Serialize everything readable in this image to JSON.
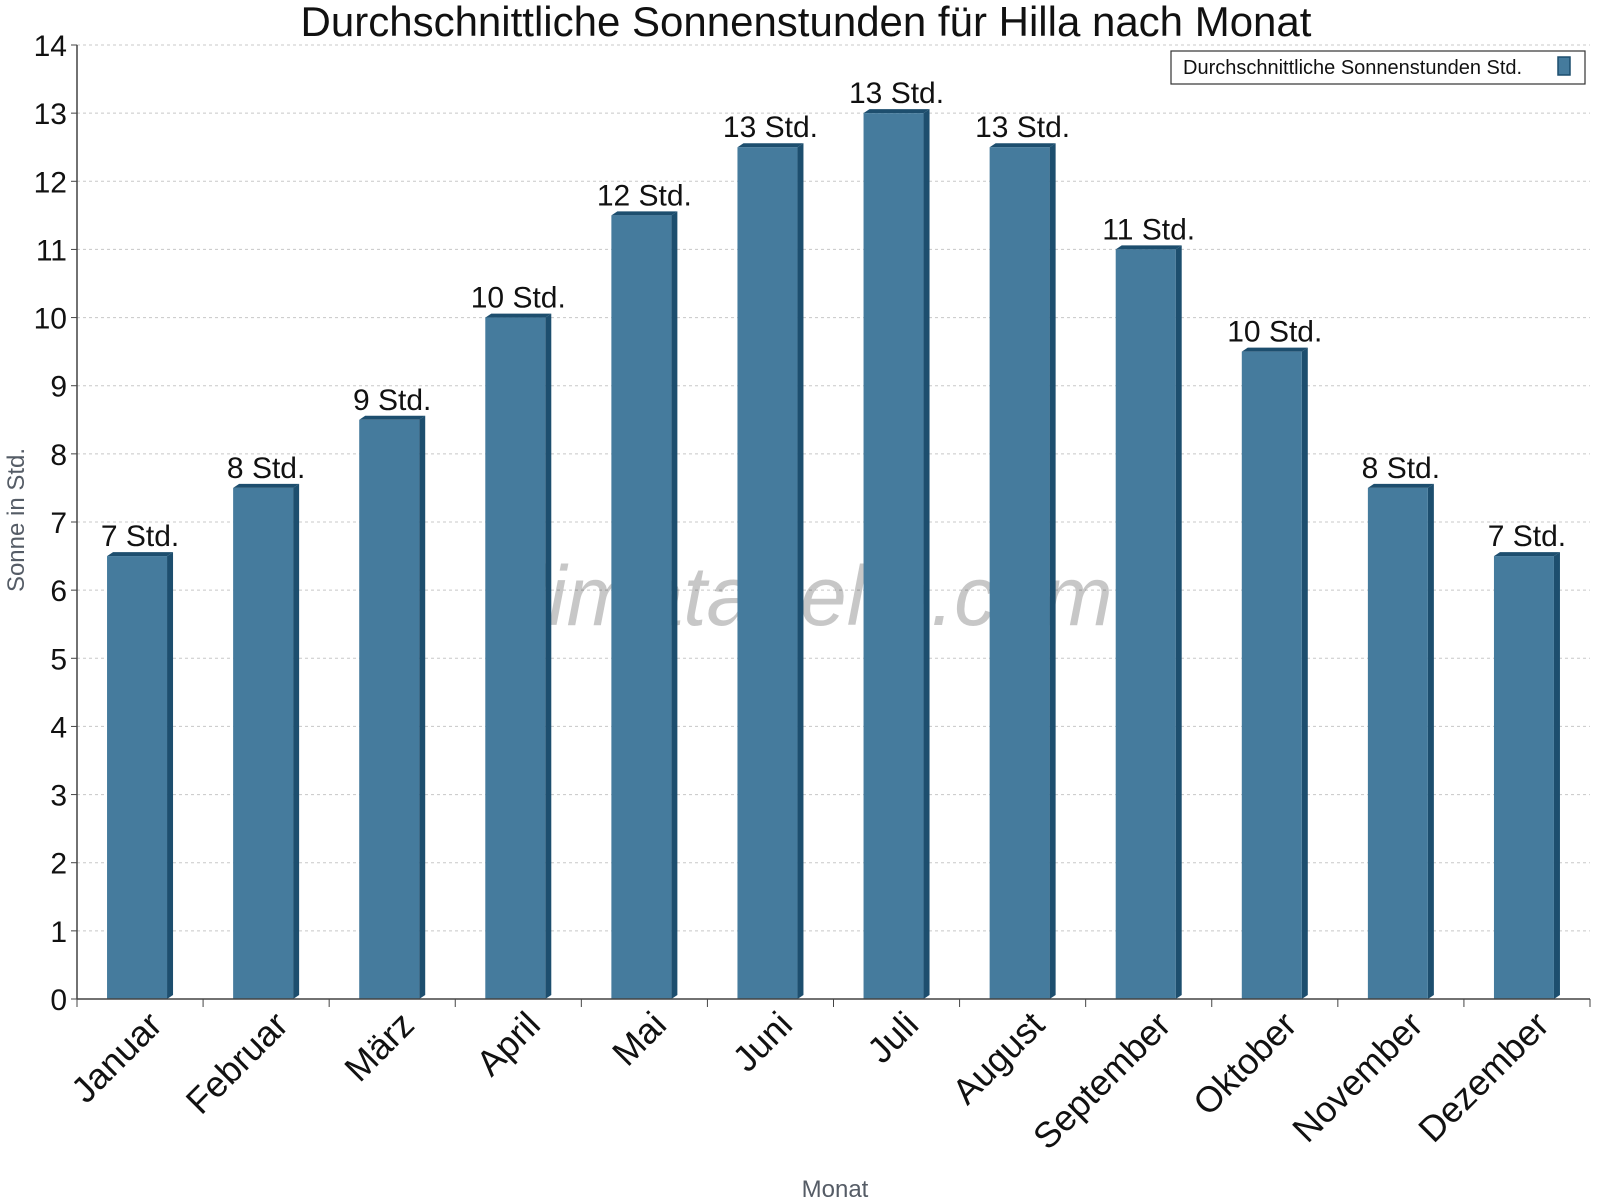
{
  "chart_data": {
    "type": "bar",
    "title": "Durchschnittliche Sonnenstunden für Hilla nach Monat",
    "xlabel": "Monat",
    "ylabel": "Sonne in Std.",
    "ylim": [
      0,
      14
    ],
    "yticks": [
      "0",
      "1",
      "2",
      "3",
      "4",
      "5",
      "6",
      "7",
      "8",
      "9",
      "10",
      "11",
      "12",
      "13",
      "14"
    ],
    "categories": [
      "Januar",
      "Februar",
      "März",
      "April",
      "Mai",
      "Juni",
      "Juli",
      "August",
      "September",
      "Oktober",
      "November",
      "Dezember"
    ],
    "series": [
      {
        "name": "Durchschnittliche Sonnenstunden Std.",
        "values": [
          6.5,
          7.5,
          8.5,
          10,
          11.5,
          12.5,
          13,
          12.5,
          11,
          9.5,
          7.5,
          6.5
        ],
        "data_labels": [
          "7 Std.",
          "8 Std.",
          "9 Std.",
          "10 Std.",
          "12 Std.",
          "13 Std.",
          "13 Std.",
          "13 Std.",
          "11 Std.",
          "10 Std.",
          "8 Std.",
          "7 Std."
        ]
      }
    ],
    "grid": true,
    "legend_position": "top-right",
    "watermark": "klimatabelle.com",
    "colors": {
      "bar": "#457b9d",
      "bar_side": "#1d4e6e",
      "grid": "#c8c8c8",
      "axis": "#444444"
    }
  }
}
